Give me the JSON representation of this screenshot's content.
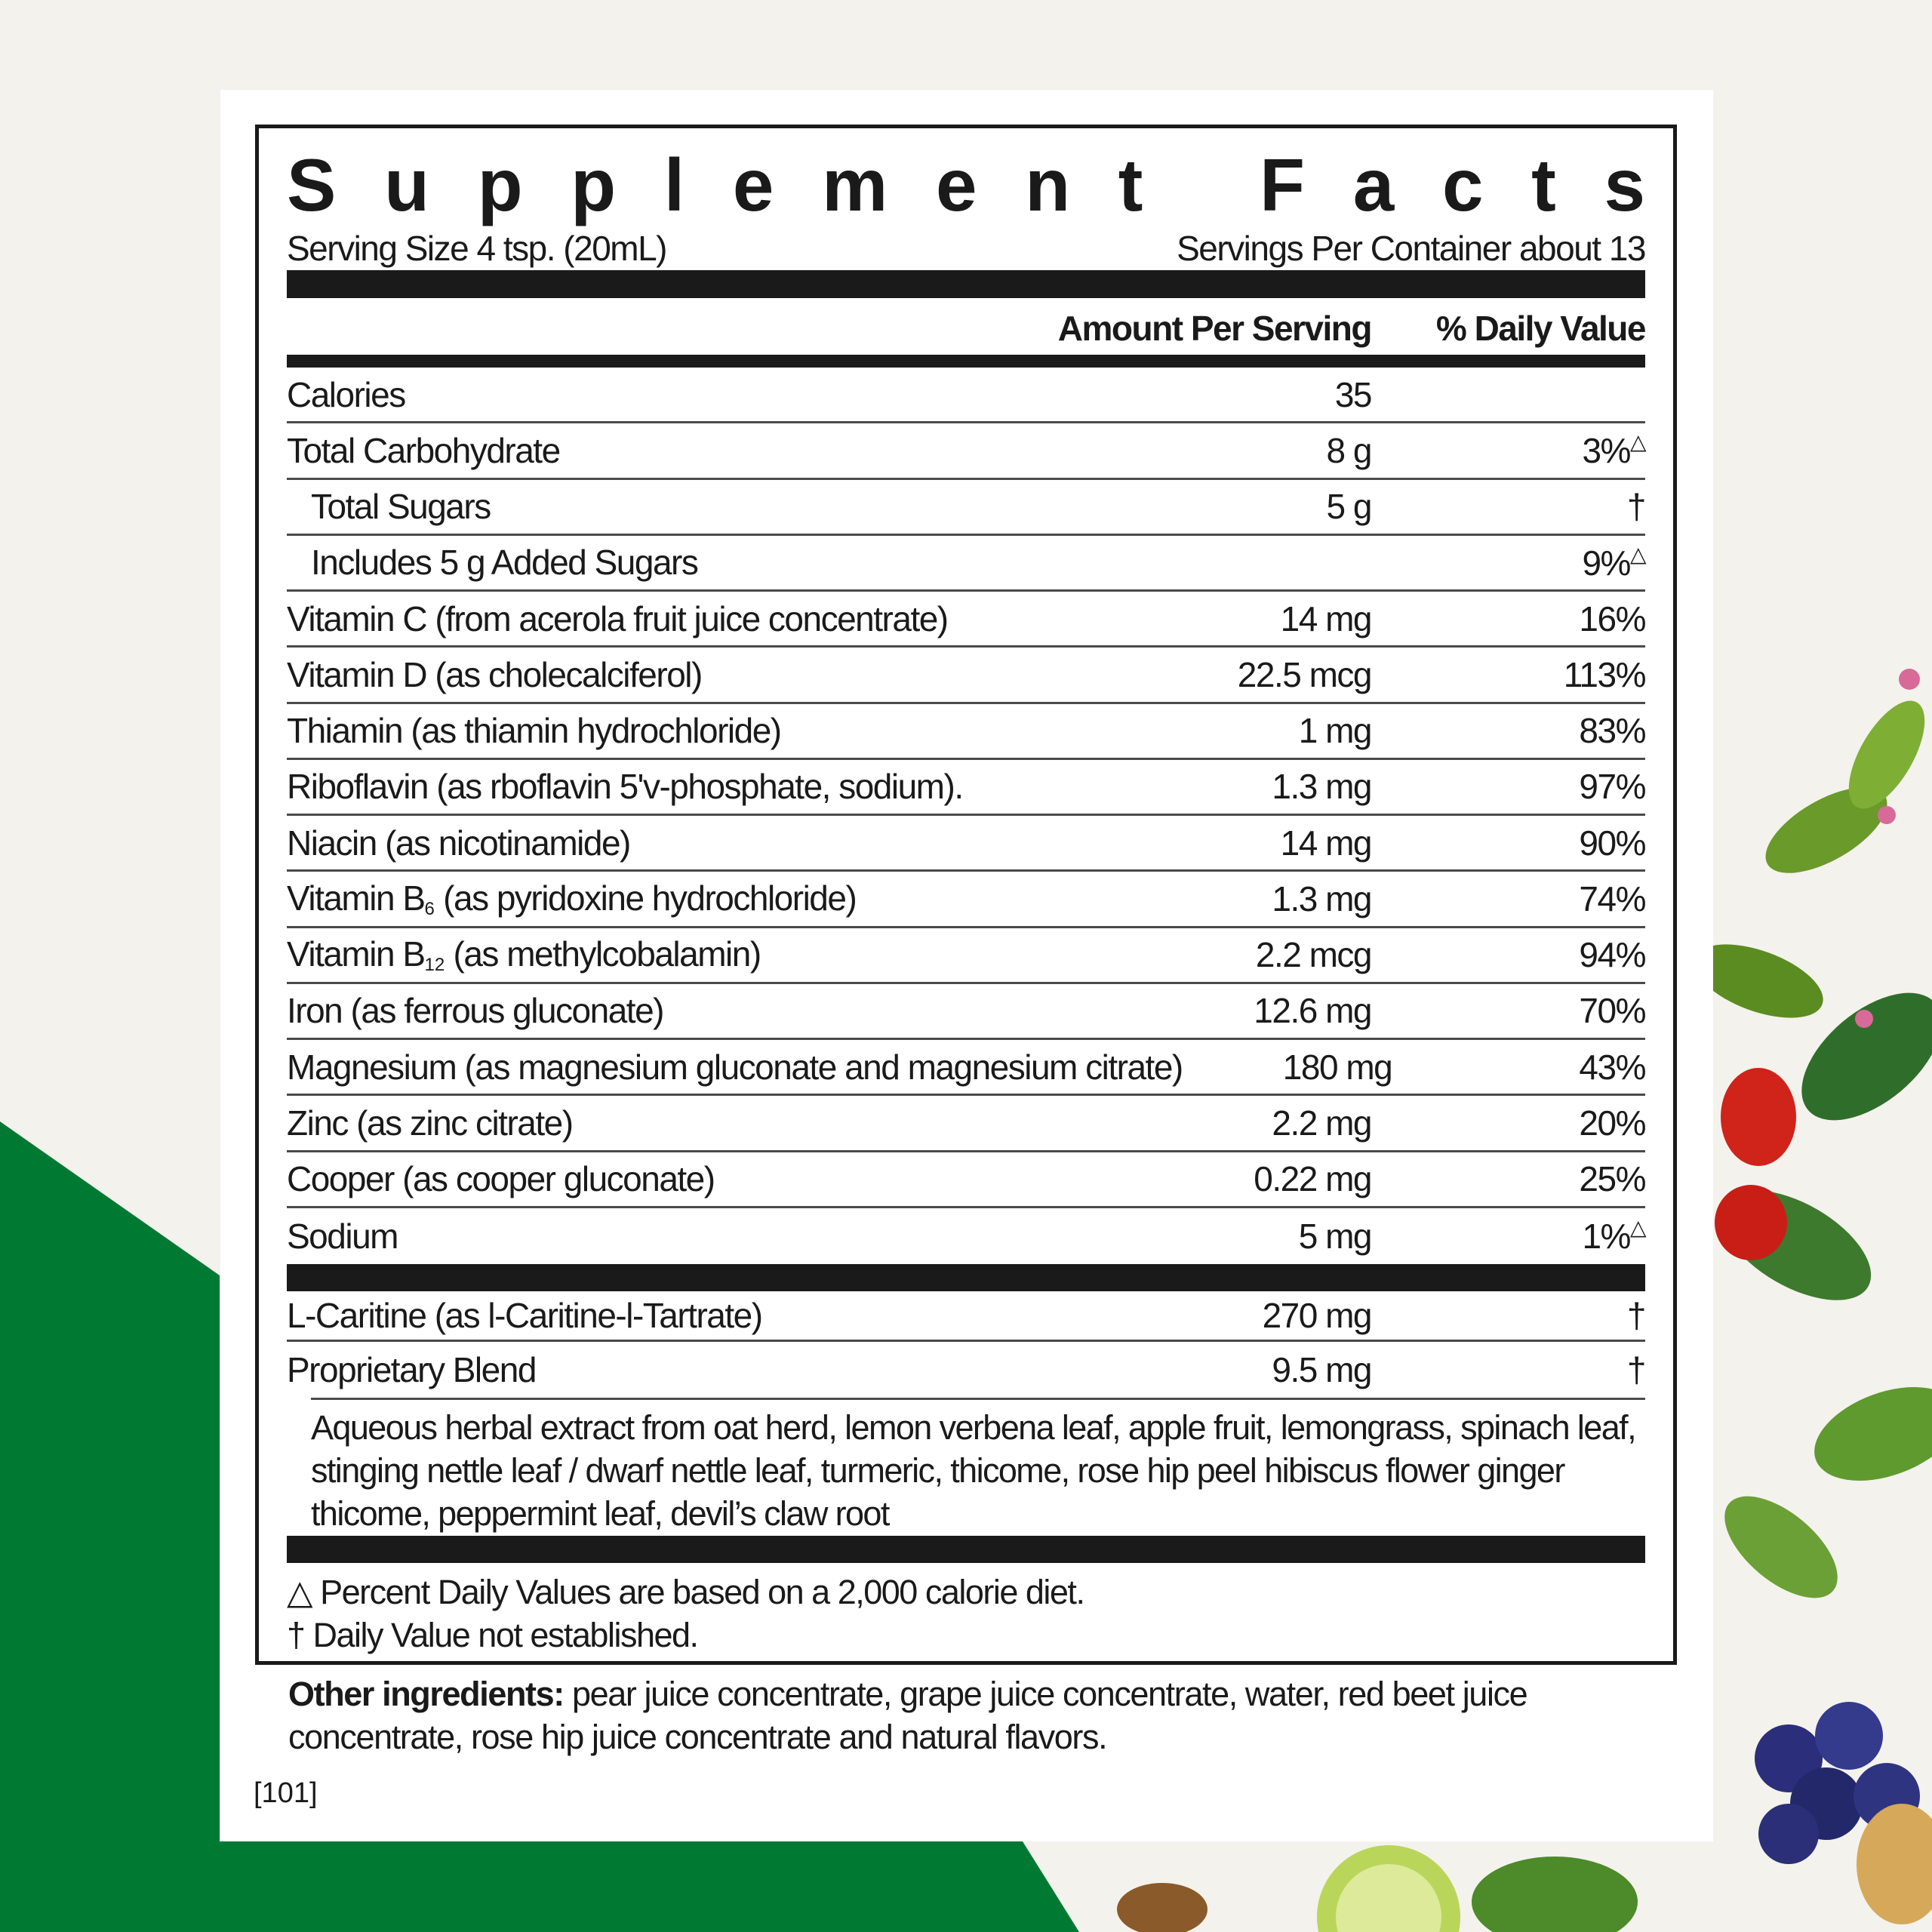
{
  "colors": {
    "background": "#f4f2ec",
    "green": "#007a33",
    "text": "#1a1a1a"
  },
  "title": "Supplement Facts",
  "serving_size": "Serving Size 4 tsp. (20mL)",
  "servings_per_container": "Servings Per Container about 13",
  "header": {
    "amount": "Amount Per Serving",
    "dv": "% Daily Value"
  },
  "rows": [
    {
      "name": "Calories",
      "amount": "35",
      "dv": ""
    },
    {
      "name": "Total Carbohydrate",
      "amount": "8 g",
      "dv": "3%",
      "mark": "△"
    },
    {
      "name": "Total Sugars",
      "amount": "5 g",
      "dv": "†",
      "indent": true
    },
    {
      "name": "Includes 5 g Added Sugars",
      "amount": "",
      "dv": "9%",
      "mark": "△",
      "indent": true
    },
    {
      "name": "Vitamin C (from acerola fruit juice concentrate)",
      "amount": "14 mg",
      "dv": "16%"
    },
    {
      "name": "Vitamin D (as cholecalciferol)",
      "amount": "22.5 mcg",
      "dv": "113%"
    },
    {
      "name": "Thiamin (as thiamin hydrochloride)",
      "amount": "1 mg",
      "dv": "83%"
    },
    {
      "name": "Riboflavin (as rboflavin 5'v-phosphate, sodium).",
      "amount": "1.3 mg",
      "dv": "97%"
    },
    {
      "name": "Niacin (as nicotinamide)",
      "amount": "14 mg",
      "dv": "90%"
    },
    {
      "name": "Vitamin B",
      "sub": "6",
      "rest": " (as pyridoxine hydrochloride)",
      "amount": "1.3 mg",
      "dv": "74%"
    },
    {
      "name": "Vitamin B",
      "sub": "12",
      "rest": " (as methylcobalamin)",
      "amount": "2.2 mcg",
      "dv": "94%"
    },
    {
      "name": "Iron (as ferrous gluconate)",
      "amount": "12.6 mg",
      "dv": "70%"
    },
    {
      "name": "Magnesium (as magnesium gluconate and magnesium citrate)",
      "amount": "180 mg",
      "dv": "43%"
    },
    {
      "name": "Zinc (as zinc citrate)",
      "amount": "2.2 mg",
      "dv": "20%"
    },
    {
      "name": "Cooper (as cooper gluconate)",
      "amount": "0.22 mg",
      "dv": "25%"
    },
    {
      "name": "Sodium",
      "amount": "5 mg",
      "dv": "1%",
      "mark": "△"
    }
  ],
  "rows2": [
    {
      "name": "L-Caritine (as l-Caritine-l-Tartrate)",
      "amount": "270 mg",
      "dv": "†"
    },
    {
      "name": "Proprietary Blend",
      "amount": "9.5 mg",
      "dv": "†"
    }
  ],
  "blend": "Aqueous herbal extract from oat herd, lemon verbena leaf, apple fruit, lemongrass, spinach leaf, stinging nettle leaf / dwarf nettle leaf, turmeric, thicome, rose hip peel hibiscus flower ginger thicome, peppermint leaf, devil’s claw root",
  "footnotes": [
    "△ Percent Daily Values are based on a 2,000 calorie diet.",
    "† Daily Value not established."
  ],
  "other": {
    "label": "Other ingredients:",
    "text": " pear juice concentrate, grape juice concentrate, water, red beet juice concentrate, rose hip juice concentrate and natural flavors."
  },
  "code": "[101]"
}
